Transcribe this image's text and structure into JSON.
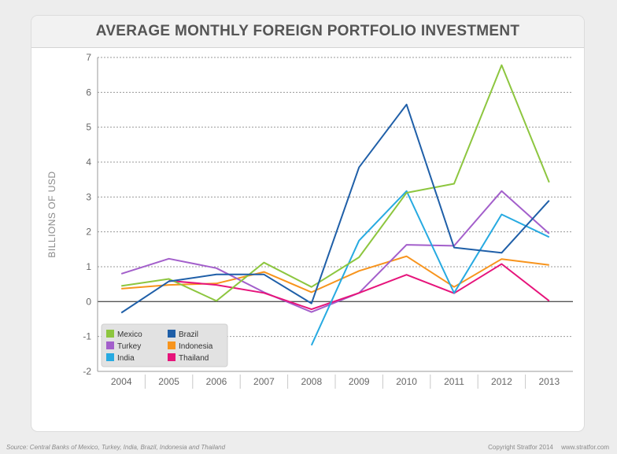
{
  "chart_data": {
    "type": "line",
    "title": "AVERAGE MONTHLY FOREIGN PORTFOLIO INVESTMENT",
    "xlabel": "",
    "ylabel": "BILLIONS OF USD",
    "ylim": [
      -2,
      7
    ],
    "yticks": [
      -2,
      -1,
      0,
      1,
      2,
      3,
      4,
      5,
      6,
      7
    ],
    "categories": [
      "2004",
      "2005",
      "2006",
      "2007",
      "2008",
      "2009",
      "2010",
      "2011",
      "2012",
      "2013"
    ],
    "grid": true,
    "legend_position": "bottom-left",
    "series": [
      {
        "name": "Mexico",
        "color": "#8dc63f",
        "values": [
          0.45,
          0.65,
          0.02,
          1.12,
          0.42,
          1.27,
          3.12,
          3.38,
          6.78,
          3.42
        ]
      },
      {
        "name": "Brazil",
        "color": "#1f5fa8",
        "values": [
          -0.32,
          0.58,
          0.78,
          0.78,
          -0.05,
          3.85,
          5.65,
          1.55,
          1.4,
          2.9
        ]
      },
      {
        "name": "Turkey",
        "color": "#a35fcb",
        "values": [
          0.8,
          1.23,
          0.96,
          0.27,
          -0.3,
          0.25,
          1.63,
          1.6,
          3.17,
          1.95
        ]
      },
      {
        "name": "Indonesia",
        "color": "#f7941d",
        "values": [
          0.37,
          0.48,
          0.52,
          0.85,
          0.27,
          0.88,
          1.3,
          0.42,
          1.22,
          1.05
        ]
      },
      {
        "name": "India",
        "color": "#27aae1",
        "values": [
          null,
          null,
          null,
          null,
          -1.25,
          1.75,
          3.17,
          0.25,
          2.5,
          1.85
        ]
      },
      {
        "name": "Thailand",
        "color": "#e6147b",
        "values": [
          null,
          0.6,
          0.48,
          0.25,
          -0.22,
          0.25,
          0.77,
          0.24,
          1.08,
          0.02
        ]
      }
    ]
  },
  "footer": {
    "source": "Source: Central Banks of Mexico, Turkey, India, Brazil, Indonesia and Thailand",
    "copyright": "Copyright Stratfor 2014",
    "website": "www.stratfor.com"
  }
}
